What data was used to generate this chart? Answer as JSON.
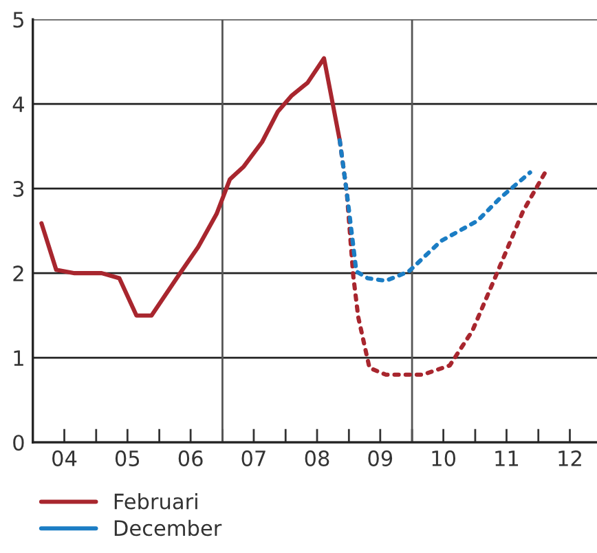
{
  "chart_data": {
    "type": "line",
    "series": [
      {
        "name": "Februari",
        "color": "#a8262e",
        "line_style": "solid",
        "x": [
          "2004-02-20",
          "2004-05-15",
          "2004-08-29",
          "2005-02-02",
          "2005-05-15",
          "2005-08-22",
          "2005-11-17",
          "2006-05-01",
          "2006-08-14",
          "2006-11-28",
          "2007-02-13",
          "2007-05-04",
          "2007-08-18",
          "2007-11-17",
          "2008-02-06",
          "2008-04-12",
          "2008-05-07",
          "2008-08-10",
          "2008-11-09"
        ],
        "values": [
          2.59,
          2.04,
          2.0,
          2.0,
          1.94,
          1.5,
          1.5,
          2.0,
          2.31,
          2.7,
          3.11,
          3.26,
          3.55,
          3.91,
          4.1,
          4.21,
          4.25,
          4.54,
          3.57
        ]
      },
      {
        "color": "#a8262e",
        "line_style": "dotted",
        "x": [
          "2008-11-09",
          "2008-12-20",
          "2009-01-26",
          "2009-02-24",
          "2009-04-30",
          "2009-08-03",
          "2010-03-03",
          "2010-08-07",
          "2010-12-16",
          "2011-05-11",
          "2011-10-04",
          "2012-02-09"
        ],
        "values": [
          3.57,
          2.95,
          1.97,
          1.48,
          0.88,
          0.8,
          0.8,
          0.91,
          1.32,
          2.02,
          2.73,
          3.19
        ]
      },
      {
        "name": "December",
        "color": "#1b7dc4",
        "line_style": "dotted",
        "x": [
          "2008-11-09",
          "2008-12-20",
          "2009-02-13",
          "2009-04-20",
          "2009-08-03",
          "2009-12-13",
          "2010-06-17",
          "2011-01-15",
          "2011-05-26",
          "2011-11-14"
        ],
        "values": [
          3.57,
          2.95,
          2.02,
          1.94,
          1.91,
          2.02,
          2.38,
          2.62,
          2.89,
          3.19
        ]
      }
    ],
    "xlim": [
      "2004-01-01",
      "2012-12-05"
    ],
    "xticks": [
      {
        "value": "2004-07-01",
        "label": "04"
      },
      {
        "value": "2005-01-01",
        "label": null
      },
      {
        "value": "2005-07-01",
        "label": "05"
      },
      {
        "value": "2006-01-01",
        "label": null
      },
      {
        "value": "2006-07-01",
        "label": "06"
      },
      {
        "value": "2007-01-01",
        "label": null
      },
      {
        "value": "2007-07-01",
        "label": "07"
      },
      {
        "value": "2008-01-01",
        "label": null
      },
      {
        "value": "2008-07-01",
        "label": "08"
      },
      {
        "value": "2009-01-01",
        "label": null
      },
      {
        "value": "2009-07-01",
        "label": "09"
      },
      {
        "value": "2010-01-01",
        "label": null
      },
      {
        "value": "2010-07-01",
        "label": "10"
      },
      {
        "value": "2011-01-01",
        "label": null
      },
      {
        "value": "2011-07-01",
        "label": "11"
      },
      {
        "value": "2012-01-01",
        "label": null
      },
      {
        "value": "2012-07-01",
        "label": "12"
      }
    ],
    "ylim": [
      0,
      5
    ],
    "yticks": [
      0,
      1,
      2,
      3,
      4,
      5
    ],
    "ref_lines": [
      {
        "axis": "x",
        "value": "2007-01-01",
        "color": "#555555"
      },
      {
        "axis": "x",
        "value": "2010-01-01",
        "color": "#555555"
      }
    ],
    "grid": "y",
    "legend": "bottom left",
    "marker": "none"
  }
}
